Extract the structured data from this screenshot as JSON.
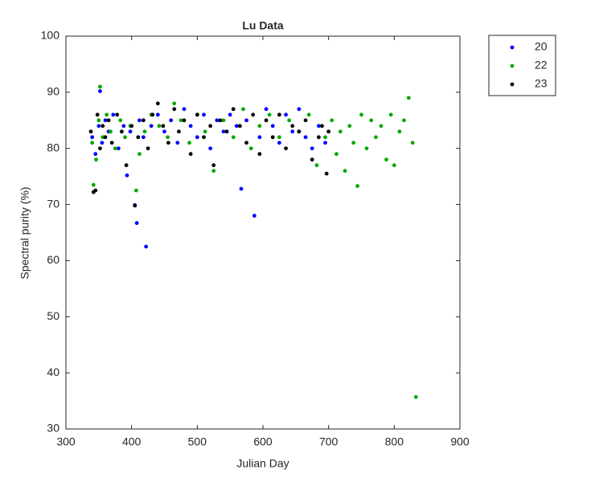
{
  "chart_data": {
    "type": "scatter",
    "title": "Lu Data",
    "x_label": "Julian Day",
    "y_label": "Spectral purity (%)",
    "xlim": [
      300,
      900
    ],
    "xticks": [
      300,
      400,
      500,
      600,
      700,
      800,
      900
    ],
    "ylim": [
      30,
      100
    ],
    "yticks": [
      30,
      40,
      50,
      60,
      70,
      80,
      90,
      100
    ],
    "grid": false,
    "legend": "northeastoutside",
    "series": [
      {
        "name": "20",
        "color": "#0000ff",
        "x": [
          340,
          345,
          350,
          352,
          355,
          360,
          365,
          372,
          380,
          388,
          393,
          398,
          405,
          408,
          412,
          418,
          422,
          430,
          440,
          450,
          460,
          470,
          480,
          490,
          500,
          510,
          520,
          530,
          540,
          550,
          560,
          567,
          575,
          587,
          595,
          605,
          615,
          625,
          635,
          645,
          655,
          665,
          675,
          685,
          695
        ],
        "values": [
          82,
          79,
          84,
          90.2,
          81,
          85,
          83,
          86,
          80,
          84,
          75.2,
          83,
          69.9,
          66.7,
          85,
          82,
          62.5,
          84,
          86,
          83,
          85,
          81,
          87,
          84,
          82,
          86,
          80,
          85,
          83,
          86,
          84,
          72.8,
          85,
          68,
          82,
          87,
          84,
          81,
          86,
          83,
          87,
          82,
          80,
          84,
          81
        ]
      },
      {
        "name": "22",
        "color": "#00aa00",
        "x": [
          340,
          342,
          346,
          350,
          352,
          356,
          362,
          368,
          375,
          383,
          390,
          398,
          407,
          412,
          420,
          430,
          442,
          455,
          465,
          475,
          488,
          500,
          512,
          525,
          540,
          555,
          570,
          582,
          595,
          610,
          625,
          640,
          655,
          670,
          682,
          695,
          705,
          712,
          718,
          725,
          732,
          738,
          744,
          750,
          758,
          765,
          772,
          780,
          788,
          795,
          800,
          808,
          815,
          822,
          828,
          833
        ],
        "values": [
          81,
          73.5,
          78,
          85,
          91,
          82,
          86,
          83,
          80,
          85,
          82,
          84,
          72.5,
          79,
          83,
          86,
          84,
          82,
          88,
          85,
          81,
          86,
          83,
          76,
          85,
          82,
          87,
          80,
          84,
          86,
          82,
          85,
          83,
          86,
          77,
          82,
          85,
          79,
          83,
          76,
          84,
          81,
          73.3,
          86,
          80,
          85,
          82,
          84,
          78,
          86,
          77,
          83,
          85,
          89,
          81,
          35.7
        ]
      },
      {
        "name": "23",
        "color": "#000000",
        "x": [
          338,
          342,
          345,
          348,
          352,
          356,
          360,
          365,
          370,
          378,
          385,
          392,
          400,
          405,
          410,
          418,
          425,
          432,
          440,
          448,
          456,
          465,
          472,
          480,
          490,
          500,
          510,
          520,
          525,
          535,
          545,
          555,
          565,
          575,
          585,
          595,
          605,
          615,
          625,
          635,
          645,
          655,
          665,
          675,
          685,
          690,
          697,
          700
        ],
        "values": [
          83,
          72.2,
          72.5,
          86,
          80,
          84,
          82,
          85,
          81,
          86,
          83,
          77,
          84,
          69.8,
          82,
          85,
          80,
          86,
          88,
          84,
          81,
          87,
          83,
          85,
          79,
          86,
          82,
          84,
          77,
          85,
          83,
          87,
          84,
          81,
          86,
          79,
          85,
          82,
          86,
          80,
          84,
          83,
          85,
          78,
          82,
          84,
          75.5,
          83
        ]
      }
    ]
  }
}
